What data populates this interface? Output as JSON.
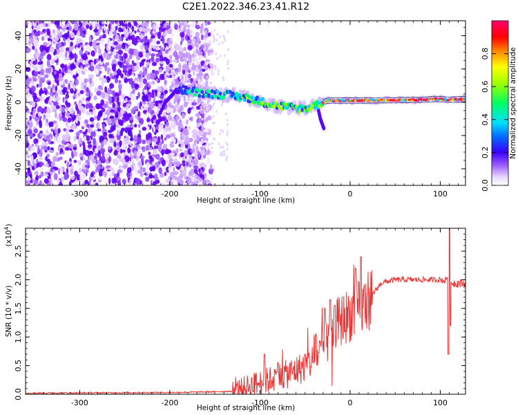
{
  "title": "C2E1.2022.346.23.41.R12",
  "colors": {
    "snr_line": "#ee3333",
    "axis": "#000000",
    "spectrogram_base": "#6a00ff"
  },
  "chart_data": [
    {
      "type": "heatmap",
      "name": "spectrogram",
      "xlabel": "Height of straight line (km)",
      "ylabel": "Frequency (Hz)",
      "xlim": [
        -360,
        128
      ],
      "ylim": [
        -50,
        49
      ],
      "xticks": [
        -300,
        -200,
        -100,
        0,
        100
      ],
      "xtick_labels": [
        "-300",
        "-200",
        "-100",
        "0",
        "100"
      ],
      "yticks": [
        -40,
        -20,
        0,
        20,
        40
      ],
      "ytick_labels": [
        "-40",
        "-20",
        "0",
        "20",
        "40"
      ],
      "ridge": {
        "x": [
          -190,
          -170,
          -150,
          -130,
          -110,
          -90,
          -70,
          -50,
          -35,
          -25,
          0,
          50,
          80,
          95,
          110,
          128
        ],
        "y": [
          8,
          6,
          5,
          4,
          2,
          -1,
          -3,
          -4,
          -1,
          1,
          1,
          1.2,
          1.5,
          2,
          1.5,
          2
        ]
      },
      "side_branches": [
        {
          "x": [
            -35,
            -33,
            -31,
            -29
          ],
          "y": [
            -5,
            -10,
            -13,
            -16
          ]
        },
        {
          "x": [
            -212,
            -205,
            -198,
            -192
          ],
          "y": [
            -8,
            0,
            4,
            8
          ]
        }
      ],
      "colorbar": {
        "label": "Normalized spectral amplitude",
        "ticks": [
          0.0,
          0.2,
          0.4,
          0.6,
          0.8
        ],
        "tick_labels": [
          "0.0",
          "0.2",
          "0.4",
          "0.6",
          "0.8"
        ],
        "range": [
          0,
          1
        ]
      }
    },
    {
      "type": "line",
      "name": "snr",
      "xlabel": "Height of straight line (km)",
      "ylabel": "SNR (10 * v/v)",
      "multiplier": "(x10",
      "multiplier_exp": "4",
      "multiplier_close": ")",
      "xlim": [
        -360,
        128
      ],
      "ylim": [
        0,
        2.9
      ],
      "xticks": [
        -300,
        -200,
        -100,
        0,
        100
      ],
      "xtick_labels": [
        "-300",
        "-200",
        "-100",
        "0",
        "100"
      ],
      "yticks": [
        0.0,
        0.5,
        1.0,
        1.5,
        2.0,
        2.5
      ],
      "ytick_labels": [
        "0.0",
        "0.5",
        "1.0",
        "1.5",
        "2.0",
        "2.5"
      ],
      "envelope": {
        "x": [
          -360,
          -200,
          -130,
          -110,
          -90,
          -70,
          -55,
          -40,
          -30,
          -22,
          -18,
          0,
          15,
          25,
          35,
          50,
          80,
          100,
          106,
          110,
          112,
          128
        ],
        "y": [
          0.02,
          0.03,
          0.05,
          0.15,
          0.25,
          0.35,
          0.45,
          0.6,
          0.8,
          1.0,
          1.2,
          1.4,
          1.55,
          1.75,
          1.95,
          2.0,
          2.0,
          2.0,
          1.98,
          2.2,
          1.95,
          1.93
        ]
      },
      "spikes": {
        "x": [
          -95,
          -80,
          -50,
          -38,
          -28,
          -22,
          -17,
          6,
          12,
          109,
          110,
          111
        ],
        "y": [
          0.7,
          0.55,
          0.7,
          1.05,
          1.5,
          1.65,
          1.55,
          2.2,
          2.4,
          0.7,
          2.9,
          1.2
        ]
      }
    }
  ]
}
